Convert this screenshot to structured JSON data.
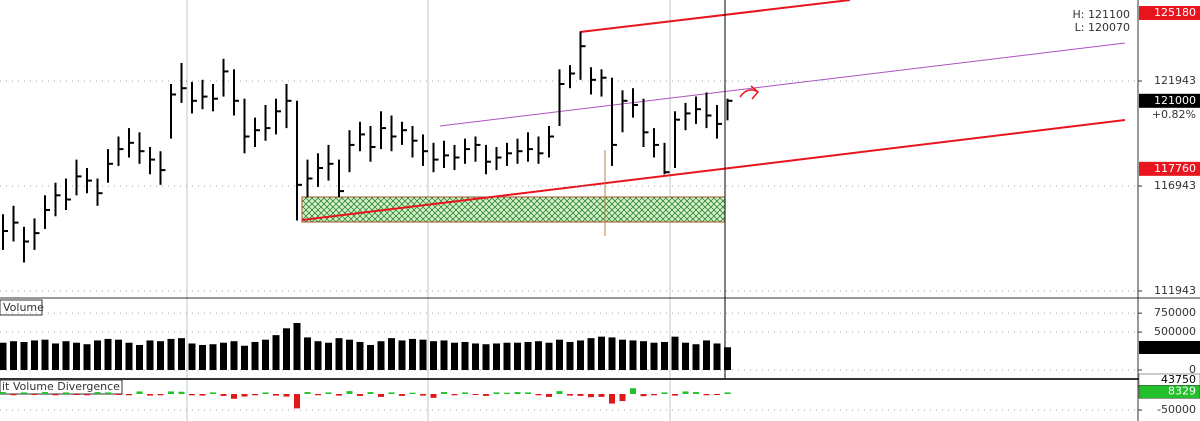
{
  "chart_data": [
    {
      "type": "ohlc",
      "color": "#000000",
      "high": [
        115600,
        116000,
        115000,
        115400,
        116500,
        117100,
        117300,
        118200,
        117800,
        117300,
        118700,
        119300,
        119700,
        119500,
        118800,
        118600,
        121800,
        122800,
        121900,
        122000,
        121800,
        123000,
        122500,
        121100,
        120200,
        120800,
        121100,
        121800,
        121000,
        118200,
        118500,
        118900,
        118200,
        119600,
        120000,
        119800,
        120500,
        120300,
        120000,
        119800,
        119400,
        119000,
        119100,
        118900,
        119200,
        119300,
        118900,
        118800,
        119000,
        119200,
        119500,
        119300,
        119800,
        122500,
        122700,
        124300,
        122600,
        122500,
        122100,
        121500,
        121600,
        121100,
        119700,
        119000,
        120500,
        120900,
        121200,
        121400,
        120800,
        121100
      ],
      "low": [
        113900,
        114300,
        113300,
        113900,
        114900,
        115500,
        115800,
        116500,
        116600,
        116000,
        117100,
        117900,
        118300,
        118000,
        117500,
        117000,
        119200,
        120900,
        120400,
        120600,
        120500,
        121200,
        120300,
        118500,
        118800,
        119100,
        119400,
        119700,
        115300,
        116400,
        116900,
        117200,
        116400,
        117600,
        118600,
        118100,
        118700,
        118600,
        118900,
        118300,
        117900,
        117600,
        117800,
        117700,
        118000,
        118100,
        117500,
        117700,
        117900,
        118000,
        118100,
        118000,
        118300,
        119800,
        121600,
        122000,
        121300,
        121200,
        117900,
        119500,
        120200,
        118800,
        118300,
        117500,
        117800,
        119600,
        119900,
        119700,
        119200,
        120070
      ],
      "close": [
        114800,
        115200,
        114300,
        114700,
        115800,
        116500,
        116300,
        117400,
        117200,
        116600,
        118000,
        118700,
        119000,
        118600,
        118200,
        117700,
        121300,
        121600,
        121000,
        121200,
        121100,
        122400,
        121000,
        119300,
        119600,
        119700,
        120500,
        121000,
        117000,
        117300,
        117800,
        118000,
        116700,
        118900,
        119400,
        118800,
        119700,
        119300,
        119600,
        119100,
        118600,
        118200,
        118400,
        118300,
        118700,
        118900,
        118100,
        118300,
        118500,
        118600,
        118700,
        118500,
        119300,
        121800,
        122300,
        123600,
        122000,
        122100,
        118900,
        121000,
        120800,
        119500,
        118900,
        117600,
        120100,
        120400,
        120600,
        120300,
        119900,
        121000
      ],
      "ylim": [
        111610,
        125800
      ],
      "yticks": [
        111943,
        116943,
        121943
      ],
      "price_labels": [
        {
          "value": 125180,
          "color": "#e8141e"
        },
        {
          "value": 121000,
          "color": "#000000"
        },
        {
          "value": 117760,
          "color": "#e8141e"
        }
      ],
      "change_label": "+0.82%",
      "high_label": "H: 121100",
      "low_label": "L: 120070"
    },
    {
      "type": "bar",
      "title": "Volume",
      "color": "#000000",
      "values": [
        360000,
        380000,
        370000,
        390000,
        400000,
        350000,
        380000,
        360000,
        340000,
        390000,
        410000,
        400000,
        360000,
        330000,
        390000,
        380000,
        410000,
        420000,
        350000,
        330000,
        340000,
        360000,
        380000,
        320000,
        370000,
        400000,
        460000,
        550000,
        620000,
        430000,
        380000,
        360000,
        420000,
        400000,
        370000,
        330000,
        380000,
        420000,
        390000,
        410000,
        400000,
        380000,
        390000,
        360000,
        370000,
        350000,
        340000,
        350000,
        360000,
        360000,
        370000,
        380000,
        360000,
        400000,
        370000,
        390000,
        420000,
        440000,
        430000,
        400000,
        390000,
        380000,
        360000,
        370000,
        440000,
        360000,
        340000,
        390000,
        350000,
        300000
      ],
      "ylim": [
        0,
        950000
      ],
      "yticks": [
        0,
        500000,
        750000
      ]
    },
    {
      "type": "bar",
      "title": "it Volume Divergence",
      "positive_color": "#22c02a",
      "negative_color": "#e01818",
      "values": [
        6000,
        -4000,
        5000,
        -3000,
        6000,
        -4000,
        5000,
        -3000,
        -4000,
        6000,
        5000,
        -3000,
        -4000,
        8000,
        -5000,
        -4000,
        8000,
        7000,
        -4000,
        -5000,
        5000,
        -6000,
        -15000,
        -8000,
        -4000,
        5000,
        -5000,
        -8000,
        -45000,
        6000,
        -4000,
        5000,
        -5000,
        9000,
        -6000,
        6000,
        -9000,
        5000,
        -6000,
        4000,
        -5000,
        -12000,
        6000,
        -4000,
        5000,
        -3000,
        -6000,
        5000,
        4000,
        6000,
        5000,
        -4000,
        -9000,
        9000,
        -5000,
        -6000,
        -10000,
        -9000,
        -30000,
        -22000,
        18000,
        -7000,
        -4000,
        5000,
        -5000,
        8000,
        6000,
        -4000,
        -3000,
        5000
      ],
      "ylim": [
        -84375,
        43750
      ],
      "yticks": [
        -50000
      ],
      "badges": [
        {
          "value": 43750,
          "color": "#ffffff"
        },
        {
          "value": 8329,
          "color": "#22c02a"
        }
      ]
    }
  ]
}
